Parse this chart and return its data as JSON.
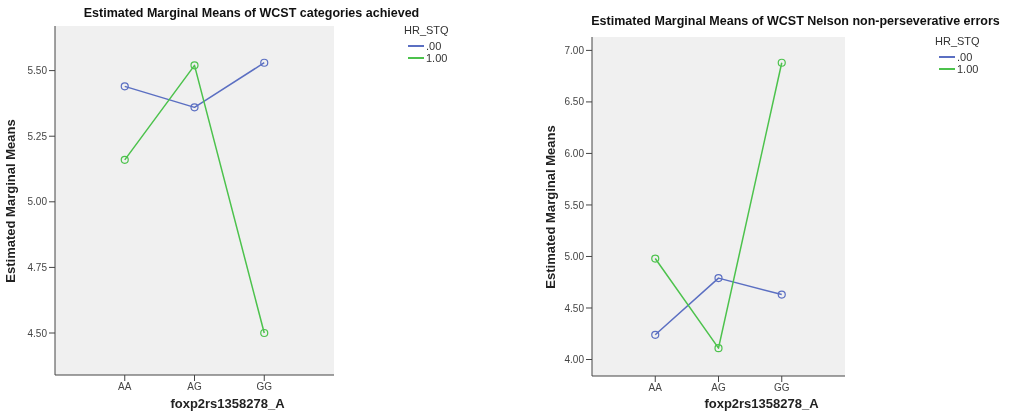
{
  "chart_data": [
    {
      "type": "line",
      "title": "Estimated Marginal Means of WCST categories achieved",
      "xlabel": "foxp2rs1358278_A",
      "ylabel": "Estimated Marginal Means",
      "legend_title": "HR_STQ",
      "categories": [
        "AA",
        "AG",
        "GG"
      ],
      "ylim": [
        4.34,
        5.67
      ],
      "yticks": [
        {
          "value": 4.5,
          "label": "4.50"
        },
        {
          "value": 4.75,
          "label": "4.75"
        },
        {
          "value": 5,
          "label": "5.00"
        },
        {
          "value": 5.25,
          "label": "5.25"
        },
        {
          "value": 5.5,
          "label": "5.50"
        }
      ],
      "grid": false,
      "legend": "top right",
      "marker": "circle",
      "series": [
        {
          "name": ".00",
          "color": "#5b6fc2",
          "values": [
            5.44,
            5.36,
            5.53
          ]
        },
        {
          "name": "1.00",
          "color": "#4cc24c",
          "values": [
            5.16,
            5.52,
            4.5
          ]
        }
      ]
    },
    {
      "type": "line",
      "title": "Estimated Marginal Means of WCST Nelson non-perseverative errors",
      "xlabel": "foxp2rs1358278_A",
      "ylabel": "Estimated Marginal Means",
      "legend_title": "HR_STQ",
      "categories": [
        "AA",
        "AG",
        "GG"
      ],
      "ylim": [
        3.84,
        7.13
      ],
      "yticks": [
        {
          "value": 4,
          "label": "4.00"
        },
        {
          "value": 4.5,
          "label": "4.50"
        },
        {
          "value": 5,
          "label": "5.00"
        },
        {
          "value": 5.5,
          "label": "5.50"
        },
        {
          "value": 6,
          "label": "6.00"
        },
        {
          "value": 6.5,
          "label": "6.50"
        },
        {
          "value": 7,
          "label": "7.00"
        }
      ],
      "grid": false,
      "legend": "top right",
      "marker": "circle",
      "series": [
        {
          "name": ".00",
          "color": "#5b6fc2",
          "values": [
            4.24,
            4.79,
            4.63
          ]
        },
        {
          "name": "1.00",
          "color": "#4cc24c",
          "values": [
            4.98,
            4.11,
            6.88
          ]
        }
      ]
    }
  ]
}
